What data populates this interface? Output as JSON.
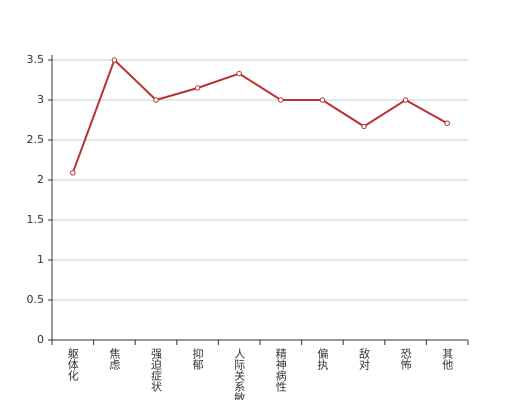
{
  "chart_data": {
    "type": "line",
    "categories": [
      "躯体化",
      "焦虑",
      "强迫症状",
      "抑郁",
      "人际关系敏感",
      "精神病性",
      "偏执",
      "敌对",
      "恐怖",
      "其他"
    ],
    "values": [
      2.09,
      3.5,
      3.0,
      3.15,
      3.33,
      3.0,
      3.0,
      2.67,
      3.0,
      2.71
    ],
    "color": "#b83232",
    "ylim": [
      0,
      3.5
    ],
    "yticks": [
      0,
      0.5,
      1,
      1.5,
      2,
      2.5,
      3,
      3.5
    ],
    "grid": true
  }
}
